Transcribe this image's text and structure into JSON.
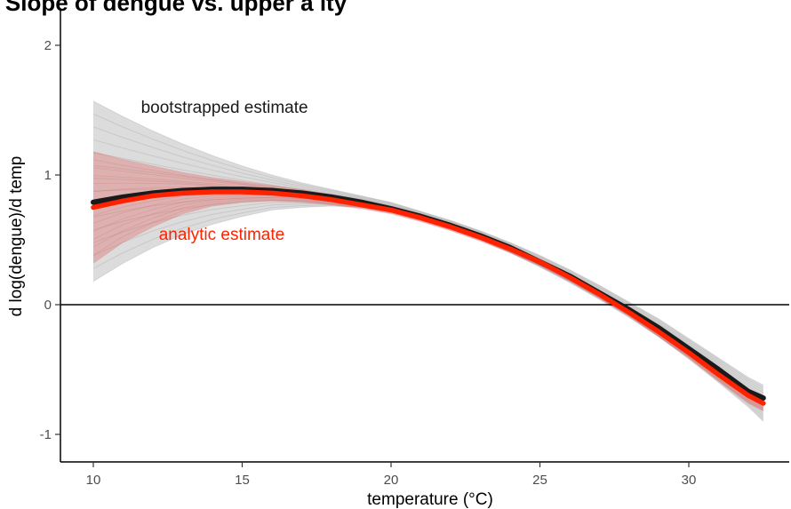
{
  "chart_data": {
    "type": "line",
    "title": ") Slope of dengue vs. upper a     ity",
    "xlabel": "temperature (°C)",
    "ylabel": "d log(dengue)/d temp",
    "xlim": [
      9,
      33
    ],
    "ylim": [
      -1.2,
      2.25
    ],
    "x_ticks": [
      10,
      15,
      20,
      25,
      30
    ],
    "y_ticks": [
      -1,
      0,
      1,
      2
    ],
    "x_tick_labels": [
      "10",
      "15",
      "20",
      "25",
      "30"
    ],
    "y_tick_labels": [
      "-1",
      "0",
      "1",
      "2"
    ],
    "reference_line_y": 0,
    "grid": false,
    "series": [
      {
        "name": "bootstrapped estimate",
        "color": "#1a1a1a",
        "x": [
          10,
          11,
          12,
          13,
          14,
          15,
          16,
          17,
          18,
          19,
          20,
          21,
          22,
          23,
          24,
          25,
          26,
          27,
          28,
          29,
          30,
          31,
          32,
          32.5
        ],
        "y": [
          0.79,
          0.83,
          0.86,
          0.88,
          0.89,
          0.89,
          0.88,
          0.86,
          0.83,
          0.79,
          0.74,
          0.68,
          0.61,
          0.53,
          0.44,
          0.33,
          0.22,
          0.09,
          -0.04,
          -0.18,
          -0.34,
          -0.5,
          -0.67,
          -0.72
        ],
        "band_upper": [
          1.57,
          1.45,
          1.34,
          1.24,
          1.15,
          1.07,
          1.0,
          0.94,
          0.89,
          0.84,
          0.79,
          0.72,
          0.65,
          0.57,
          0.48,
          0.38,
          0.27,
          0.15,
          0.02,
          -0.11,
          -0.26,
          -0.41,
          -0.56,
          -0.62
        ],
        "band_lower": [
          0.18,
          0.32,
          0.44,
          0.54,
          0.62,
          0.68,
          0.73,
          0.75,
          0.76,
          0.75,
          0.71,
          0.65,
          0.58,
          0.5,
          0.4,
          0.29,
          0.17,
          0.04,
          -0.1,
          -0.25,
          -0.42,
          -0.6,
          -0.79,
          -0.9
        ]
      },
      {
        "name": "analytic estimate",
        "color": "#ff2200",
        "x": [
          10,
          11,
          12,
          13,
          14,
          15,
          16,
          17,
          18,
          19,
          20,
          21,
          22,
          23,
          24,
          25,
          26,
          27,
          28,
          29,
          30,
          31,
          32,
          32.5
        ],
        "y": [
          0.75,
          0.8,
          0.84,
          0.86,
          0.87,
          0.87,
          0.86,
          0.84,
          0.81,
          0.77,
          0.73,
          0.67,
          0.6,
          0.52,
          0.43,
          0.33,
          0.21,
          0.08,
          -0.06,
          -0.21,
          -0.37,
          -0.54,
          -0.7,
          -0.76
        ],
        "band_upper": [
          1.18,
          1.12,
          1.07,
          1.02,
          0.98,
          0.95,
          0.92,
          0.89,
          0.85,
          0.81,
          0.76,
          0.7,
          0.63,
          0.55,
          0.46,
          0.35,
          0.24,
          0.11,
          -0.03,
          -0.17,
          -0.33,
          -0.49,
          -0.65,
          -0.72
        ],
        "band_lower": [
          0.32,
          0.48,
          0.6,
          0.7,
          0.76,
          0.79,
          0.8,
          0.79,
          0.77,
          0.74,
          0.7,
          0.64,
          0.57,
          0.49,
          0.4,
          0.3,
          0.18,
          0.05,
          -0.09,
          -0.25,
          -0.41,
          -0.59,
          -0.76,
          -0.82
        ]
      }
    ],
    "annotations": [
      {
        "text": "bootstrapped estimate",
        "x": 11.6,
        "y": 1.48,
        "color": "#1a1a1a"
      },
      {
        "text": "analytic estimate",
        "x": 12.2,
        "y": 0.5,
        "color": "#ff2200"
      }
    ]
  }
}
